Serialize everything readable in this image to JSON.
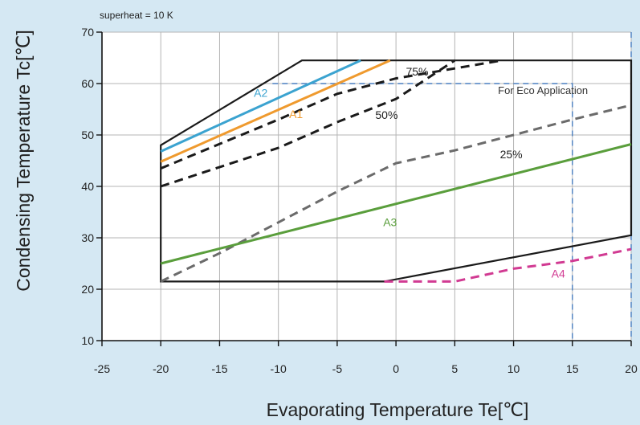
{
  "chart_data": {
    "type": "line",
    "annotation_top": "superheat = 10 K",
    "xlabel": "Evaporating Temperature Te[℃]",
    "ylabel": "Condensing Temperature Tc[℃]",
    "x_ticks": [
      -25,
      -20,
      -15,
      -10,
      -5,
      0,
      5,
      10,
      15,
      20
    ],
    "x_tick_labels": [
      "-25",
      "-20",
      "-15",
      "-10",
      "-5",
      "0",
      "5",
      "10",
      "15",
      "20"
    ],
    "y_ticks": [
      10,
      20,
      30,
      40,
      50,
      60,
      70
    ],
    "y_tick_labels": [
      "10",
      "20",
      "30",
      "40",
      "50",
      "60",
      "70"
    ],
    "xlim": [
      -25,
      20
    ],
    "ylim": [
      10,
      70
    ],
    "grid": true,
    "envelope": {
      "color": "#1a1a1a",
      "points": [
        [
          -20,
          21.5
        ],
        [
          -1,
          21.5
        ],
        [
          20,
          30.5
        ],
        [
          20,
          64.5
        ],
        [
          -8,
          64.5
        ],
        [
          -20,
          48
        ]
      ]
    },
    "series": [
      {
        "name": "A2",
        "color": "#3ba3d0",
        "dash": "solid",
        "points": [
          [
            -20,
            46.8
          ],
          [
            -3,
            64.5
          ]
        ],
        "label": {
          "text": "A2",
          "at": [
            -11.5,
            57.4
          ]
        }
      },
      {
        "name": "A1",
        "color": "#ef9a2e",
        "dash": "solid",
        "points": [
          [
            -20,
            44.8
          ],
          [
            -0.5,
            64.5
          ]
        ],
        "label": {
          "text": "A1",
          "at": [
            -8.5,
            53.3
          ]
        }
      },
      {
        "name": "75%",
        "color": "#1a1a1a",
        "dash": "dashed",
        "points": [
          [
            -20,
            43.5
          ],
          [
            -10,
            53
          ],
          [
            -5,
            58
          ],
          [
            0,
            61
          ],
          [
            9,
            64.5
          ]
        ],
        "label": {
          "text": "75%",
          "at": [
            1.8,
            61.6
          ]
        }
      },
      {
        "name": "50%",
        "color": "#1a1a1a",
        "dash": "dashed",
        "points": [
          [
            -20,
            40
          ],
          [
            -10,
            47.5
          ],
          [
            -5,
            52.5
          ],
          [
            0,
            57
          ],
          [
            5,
            64.5
          ]
        ],
        "label": {
          "text": "50%",
          "at": [
            -0.8,
            53.1
          ]
        }
      },
      {
        "name": "25%",
        "color": "#6b6b6b",
        "dash": "dashed",
        "points": [
          [
            -20,
            21.5
          ],
          [
            -15,
            27
          ],
          [
            -10,
            33
          ],
          [
            -5,
            39
          ],
          [
            0,
            44.5
          ],
          [
            5,
            47
          ],
          [
            10,
            50
          ],
          [
            15,
            53
          ],
          [
            20,
            55.8
          ]
        ],
        "label": {
          "text": "25%",
          "at": [
            9.8,
            45.5
          ]
        }
      },
      {
        "name": "A3",
        "color": "#5a9e3c",
        "dash": "solid",
        "points": [
          [
            -20,
            25
          ],
          [
            20,
            48.2
          ]
        ],
        "label": {
          "text": "A3",
          "at": [
            -0.5,
            32.3
          ]
        }
      },
      {
        "name": "A4",
        "color": "#d13a92",
        "dash": "dashed",
        "points": [
          [
            -1,
            21.5
          ],
          [
            5,
            21.5
          ],
          [
            10,
            24
          ],
          [
            15,
            25.5
          ],
          [
            20,
            27.8
          ]
        ],
        "label": {
          "text": "A4",
          "at": [
            13.8,
            22.3
          ]
        }
      }
    ],
    "eco_region": {
      "text": "For Eco Application",
      "color": "#4a7fc0",
      "points": [
        [
          -10.5,
          60
        ],
        [
          15,
          60
        ],
        [
          15,
          10
        ]
      ],
      "label_at": [
        12.5,
        58
      ]
    },
    "right_edge_dashed": {
      "color": "#4a7fc0",
      "points": [
        [
          20,
          70
        ],
        [
          20,
          10
        ]
      ]
    }
  }
}
